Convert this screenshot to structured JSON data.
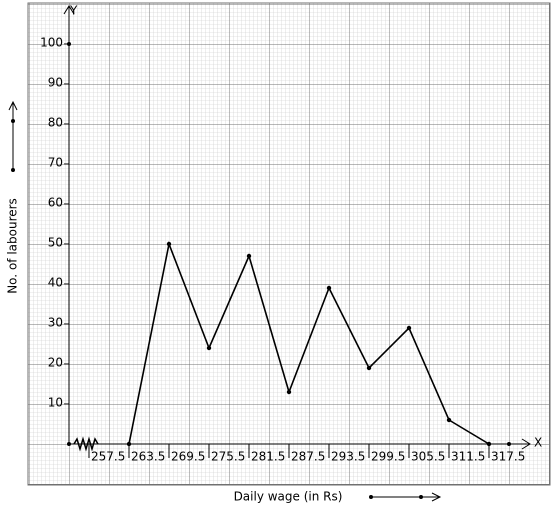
{
  "chart_data": {
    "type": "line",
    "x_label": "Daily wage (in Rs)",
    "y_label": "No. of labourers",
    "x_axis_name": "X",
    "y_axis_name": "Y",
    "x": [
      263.5,
      269.5,
      275.5,
      281.5,
      287.5,
      293.5,
      299.5,
      305.5,
      311.5,
      317.5
    ],
    "values": [
      0,
      50,
      24,
      47,
      13,
      39,
      19,
      29,
      6,
      0
    ],
    "color": "#000000",
    "xlim": [
      254.5,
      323.5
    ],
    "xticks": [
      257.5,
      263.5,
      269.5,
      275.5,
      281.5,
      287.5,
      293.5,
      299.5,
      305.5,
      311.5,
      317.5
    ],
    "ylim": [
      0,
      110
    ],
    "yticks": [
      10,
      20,
      30,
      40,
      50,
      60,
      70,
      80,
      90,
      100
    ],
    "grid": true
  }
}
